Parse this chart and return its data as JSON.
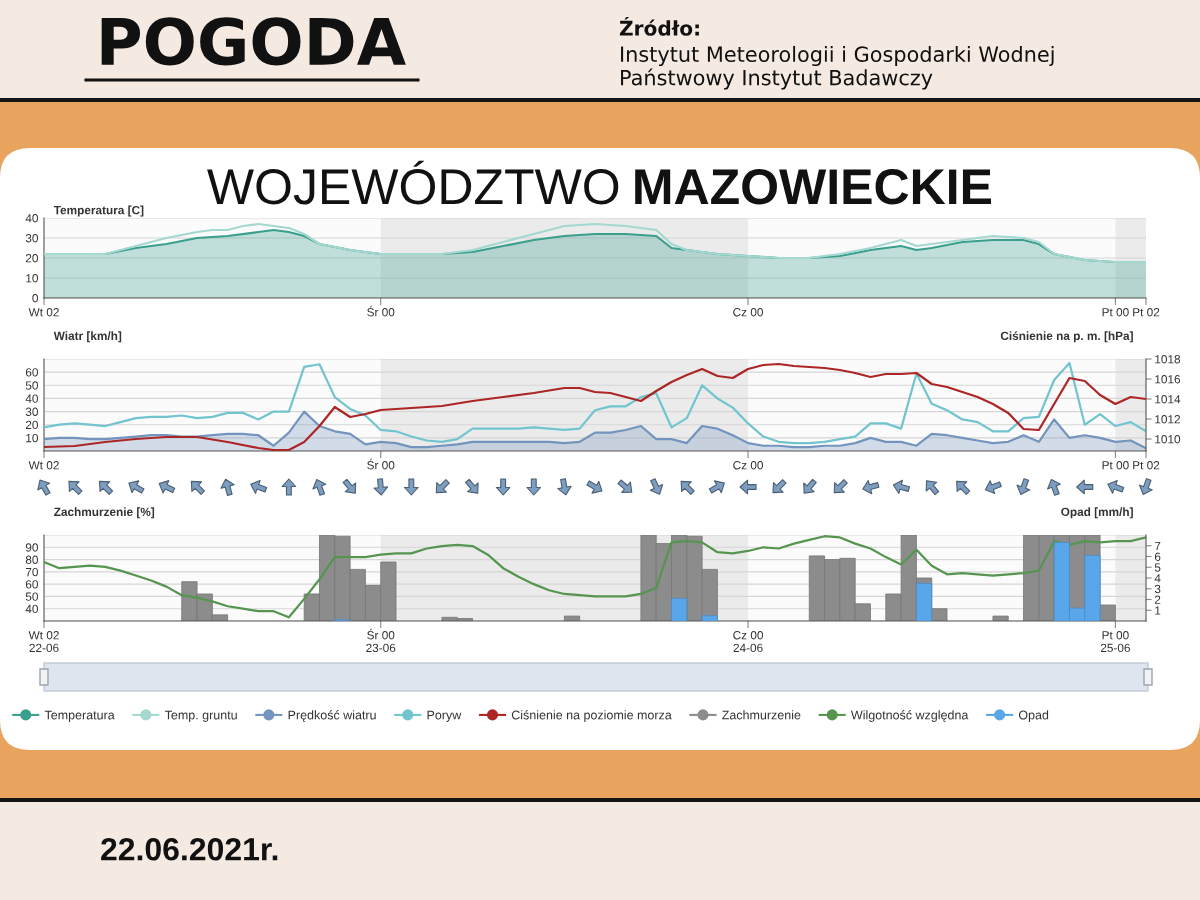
{
  "chart_data": [
    {
      "type": "line",
      "title": "WOJEWÓDZTWO MAZOWIECKIE",
      "annotations": [
        "POGODA",
        "Źródło:",
        "Instytut Meteorologii i Gospodarki Wodnej",
        "Państwowy Instytut Badawczy",
        "22.06.2021r."
      ],
      "ylabel": "Temperatura [C]",
      "xlim": [
        "2021-06-22T02:00",
        "2021-06-25T02:00"
      ],
      "xticks": [
        {
          "value": "2021-06-22T02:00",
          "label": "Wt 02"
        },
        {
          "value": "2021-06-23T00:00",
          "label": "Śr 00"
        },
        {
          "value": "2021-06-24T00:00",
          "label": "Cz 00"
        },
        {
          "value": "2021-06-25T00:00",
          "label": "Pt 00"
        },
        {
          "value": "2021-06-25T02:00",
          "label": "Pt 02"
        }
      ],
      "ylim": [
        0,
        40
      ],
      "yticks": [
        0,
        10,
        20,
        30,
        40
      ],
      "grid": "y",
      "legend": "bottom",
      "bands": [
        {
          "axis": "x",
          "from": "2021-06-23T00:00",
          "to": "2021-06-24T00:00",
          "color": "#ebebeb"
        },
        {
          "axis": "x",
          "from": "2021-06-25T00:00",
          "to": "2021-06-25T02:00",
          "color": "#ebebeb"
        }
      ],
      "series": [
        {
          "name": "Temperatura",
          "type": "area",
          "color": "#3a9f8d",
          "x": [
            "2021-06-22T02:00",
            "2021-06-22T04:00",
            "2021-06-22T06:00",
            "2021-06-22T08:00",
            "2021-06-22T10:00",
            "2021-06-22T12:00",
            "2021-06-22T14:00",
            "2021-06-22T16:00",
            "2021-06-22T17:00",
            "2021-06-22T18:00",
            "2021-06-22T19:00",
            "2021-06-22T20:00",
            "2021-06-22T22:00",
            "2021-06-23T00:00",
            "2021-06-23T02:00",
            "2021-06-23T04:00",
            "2021-06-23T06:00",
            "2021-06-23T08:00",
            "2021-06-23T10:00",
            "2021-06-23T12:00",
            "2021-06-23T14:00",
            "2021-06-23T16:00",
            "2021-06-23T18:00",
            "2021-06-23T19:00",
            "2021-06-23T20:00",
            "2021-06-23T22:00",
            "2021-06-24T00:00",
            "2021-06-24T02:00",
            "2021-06-24T04:00",
            "2021-06-24T06:00",
            "2021-06-24T08:00",
            "2021-06-24T10:00",
            "2021-06-24T11:00",
            "2021-06-24T12:00",
            "2021-06-24T14:00",
            "2021-06-24T16:00",
            "2021-06-24T18:00",
            "2021-06-24T19:00",
            "2021-06-24T20:00",
            "2021-06-24T22:00",
            "2021-06-25T00:00",
            "2021-06-25T02:00"
          ],
          "values": [
            22,
            22,
            22,
            25,
            27,
            30,
            31,
            33,
            34,
            33,
            31,
            27,
            24,
            22,
            22,
            22,
            23,
            26,
            29,
            31,
            32,
            32,
            31,
            25,
            24,
            22,
            21,
            20,
            20,
            21,
            24,
            26,
            24,
            25,
            28,
            29,
            29,
            27,
            22,
            19,
            18,
            18
          ]
        },
        {
          "name": "Temp. gruntu",
          "color": "#a4d8d0",
          "x": [
            "2021-06-22T02:00",
            "2021-06-22T04:00",
            "2021-06-22T06:00",
            "2021-06-22T08:00",
            "2021-06-22T10:00",
            "2021-06-22T12:00",
            "2021-06-22T13:00",
            "2021-06-22T14:00",
            "2021-06-22T15:00",
            "2021-06-22T16:00",
            "2021-06-22T17:00",
            "2021-06-22T18:00",
            "2021-06-22T19:00",
            "2021-06-22T20:00",
            "2021-06-22T22:00",
            "2021-06-23T00:00",
            "2021-06-23T02:00",
            "2021-06-23T04:00",
            "2021-06-23T06:00",
            "2021-06-23T08:00",
            "2021-06-23T10:00",
            "2021-06-23T12:00",
            "2021-06-23T14:00",
            "2021-06-23T16:00",
            "2021-06-23T18:00",
            "2021-06-23T19:00",
            "2021-06-23T20:00",
            "2021-06-23T22:00",
            "2021-06-24T00:00",
            "2021-06-24T02:00",
            "2021-06-24T04:00",
            "2021-06-24T06:00",
            "2021-06-24T08:00",
            "2021-06-24T10:00",
            "2021-06-24T11:00",
            "2021-06-24T12:00",
            "2021-06-24T14:00",
            "2021-06-24T16:00",
            "2021-06-24T18:00",
            "2021-06-24T19:00",
            "2021-06-24T20:00",
            "2021-06-24T22:00",
            "2021-06-25T00:00",
            "2021-06-25T02:00"
          ],
          "values": [
            22,
            22,
            22,
            26,
            30,
            33,
            34,
            34,
            36,
            37,
            36,
            35,
            32,
            27,
            24,
            22,
            22,
            22,
            24,
            28,
            32,
            36,
            37,
            36,
            34,
            27,
            24,
            22,
            21,
            20,
            20,
            22,
            25,
            29,
            26,
            27,
            29,
            31,
            30,
            28,
            22,
            19,
            18,
            18
          ]
        }
      ]
    },
    {
      "type": "line",
      "ylabel": "Wiatr [km/h]",
      "y2label": "Ciśnienie na p. m. [hPa]",
      "xlim": [
        "2021-06-22T02:00",
        "2021-06-25T02:00"
      ],
      "xticks": [
        {
          "value": "2021-06-22T02:00",
          "label": "Wt 02"
        },
        {
          "value": "2021-06-23T00:00",
          "label": "Śr 00"
        },
        {
          "value": "2021-06-24T00:00",
          "label": "Cz 00"
        },
        {
          "value": "2021-06-25T00:00",
          "label": "Pt 00"
        },
        {
          "value": "2021-06-25T02:00",
          "label": "Pt 02"
        }
      ],
      "ylim": [
        0,
        70
      ],
      "yticks": [
        10,
        20,
        30,
        40,
        50,
        60,
        {
          "value": 70,
          "label": null
        }
      ],
      "y2lim": [
        1008.8,
        1018
      ],
      "y2ticks": [
        1010,
        1012,
        1014,
        1016,
        1018
      ],
      "grid": "y",
      "legend": "bottom",
      "bands": [
        {
          "axis": "x",
          "from": "2021-06-23T00:00",
          "to": "2021-06-24T00:00",
          "color": "#ebebeb"
        },
        {
          "axis": "x",
          "from": "2021-06-25T00:00",
          "to": "2021-06-25T02:00",
          "color": "#ebebeb"
        }
      ],
      "x": [
        "2021-06-22T02:00",
        "2021-06-22T03:00",
        "2021-06-22T04:00",
        "2021-06-22T05:00",
        "2021-06-22T06:00",
        "2021-06-22T07:00",
        "2021-06-22T08:00",
        "2021-06-22T09:00",
        "2021-06-22T10:00",
        "2021-06-22T11:00",
        "2021-06-22T12:00",
        "2021-06-22T13:00",
        "2021-06-22T14:00",
        "2021-06-22T15:00",
        "2021-06-22T16:00",
        "2021-06-22T17:00",
        "2021-06-22T18:00",
        "2021-06-22T19:00",
        "2021-06-22T20:00",
        "2021-06-22T21:00",
        "2021-06-22T22:00",
        "2021-06-22T23:00",
        "2021-06-23T00:00",
        "2021-06-23T01:00",
        "2021-06-23T02:00",
        "2021-06-23T03:00",
        "2021-06-23T04:00",
        "2021-06-23T05:00",
        "2021-06-23T06:00",
        "2021-06-23T07:00",
        "2021-06-23T08:00",
        "2021-06-23T09:00",
        "2021-06-23T10:00",
        "2021-06-23T11:00",
        "2021-06-23T12:00",
        "2021-06-23T13:00",
        "2021-06-23T14:00",
        "2021-06-23T15:00",
        "2021-06-23T16:00",
        "2021-06-23T17:00",
        "2021-06-23T18:00",
        "2021-06-23T19:00",
        "2021-06-23T20:00",
        "2021-06-23T21:00",
        "2021-06-23T22:00",
        "2021-06-23T23:00",
        "2021-06-24T00:00",
        "2021-06-24T01:00",
        "2021-06-24T02:00",
        "2021-06-24T03:00",
        "2021-06-24T04:00",
        "2021-06-24T05:00",
        "2021-06-24T06:00",
        "2021-06-24T07:00",
        "2021-06-24T08:00",
        "2021-06-24T09:00",
        "2021-06-24T10:00",
        "2021-06-24T11:00",
        "2021-06-24T12:00",
        "2021-06-24T13:00",
        "2021-06-24T14:00",
        "2021-06-24T15:00",
        "2021-06-24T16:00",
        "2021-06-24T17:00",
        "2021-06-24T18:00",
        "2021-06-24T19:00",
        "2021-06-24T20:00",
        "2021-06-24T21:00",
        "2021-06-24T22:00",
        "2021-06-24T23:00",
        "2021-06-25T00:00",
        "2021-06-25T01:00",
        "2021-06-25T02:00"
      ],
      "series": [
        {
          "name": "Prędkość wiatru",
          "type": "area",
          "color": "#7394bd",
          "values": [
            9,
            10,
            10,
            9,
            9,
            10,
            11,
            12,
            12,
            11,
            11,
            12,
            13,
            13,
            12,
            4,
            14,
            30,
            19,
            15,
            13,
            5,
            7,
            6,
            3,
            3,
            4,
            5,
            7,
            7,
            7,
            7,
            7,
            7,
            6,
            7,
            14,
            14,
            16,
            19,
            9,
            9,
            6,
            19,
            17,
            12,
            6,
            4,
            4,
            3,
            3,
            4,
            4,
            6,
            10,
            7,
            7,
            4,
            13,
            12,
            10,
            8,
            6,
            7,
            12,
            7,
            24,
            10,
            12,
            10,
            7,
            8,
            2
          ]
        },
        {
          "name": "Poryw",
          "color": "#72c4ce",
          "values": [
            18,
            20,
            21,
            20,
            19,
            22,
            25,
            26,
            26,
            27,
            25,
            26,
            29,
            29,
            24,
            30,
            30,
            64,
            66,
            41,
            32,
            27,
            16,
            15,
            11,
            8,
            7,
            9,
            17,
            17,
            17,
            17,
            18,
            17,
            16,
            17,
            31,
            34,
            34,
            41,
            44,
            18,
            25,
            50,
            40,
            33,
            21,
            11,
            7,
            6,
            6,
            7,
            9,
            11,
            21,
            21,
            17,
            59,
            36,
            31,
            24,
            22,
            15,
            15,
            25,
            26,
            54,
            67,
            20,
            28,
            19,
            22,
            15
          ]
        },
        {
          "name": "Ciśnienie na poziomie morza",
          "axis": "y2",
          "color": "#ad2626",
          "x": [
            "2021-06-22T02:00",
            "2021-06-22T04:00",
            "2021-06-22T06:00",
            "2021-06-22T08:00",
            "2021-06-22T10:00",
            "2021-06-22T12:00",
            "2021-06-22T14:00",
            "2021-06-22T16:00",
            "2021-06-22T17:00",
            "2021-06-22T18:00",
            "2021-06-22T19:00",
            "2021-06-22T20:00",
            "2021-06-22T21:00",
            "2021-06-22T22:00",
            "2021-06-22T23:00",
            "2021-06-23T00:00",
            "2021-06-23T02:00",
            "2021-06-23T04:00",
            "2021-06-23T06:00",
            "2021-06-23T08:00",
            "2021-06-23T10:00",
            "2021-06-23T12:00",
            "2021-06-23T13:00",
            "2021-06-23T14:00",
            "2021-06-23T15:00",
            "2021-06-23T16:00",
            "2021-06-23T17:00",
            "2021-06-23T18:00",
            "2021-06-23T19:00",
            "2021-06-23T20:00",
            "2021-06-23T21:00",
            "2021-06-23T22:00",
            "2021-06-23T23:00",
            "2021-06-24T00:00",
            "2021-06-24T01:00",
            "2021-06-24T02:00",
            "2021-06-24T03:00",
            "2021-06-24T04:00",
            "2021-06-24T05:00",
            "2021-06-24T06:00",
            "2021-06-24T07:00",
            "2021-06-24T08:00",
            "2021-06-24T09:00",
            "2021-06-24T10:00",
            "2021-06-24T11:00",
            "2021-06-24T12:00",
            "2021-06-24T13:00",
            "2021-06-24T14:00",
            "2021-06-24T15:00",
            "2021-06-24T16:00",
            "2021-06-24T17:00",
            "2021-06-24T18:00",
            "2021-06-24T19:00",
            "2021-06-24T20:00",
            "2021-06-24T21:00",
            "2021-06-24T22:00",
            "2021-06-24T23:00",
            "2021-06-25T00:00",
            "2021-06-25T01:00",
            "2021-06-25T02:00"
          ],
          "values": [
            1009.2,
            1009.3,
            1009.7,
            1010.0,
            1010.2,
            1010.2,
            1009.7,
            1009.1,
            1008.9,
            1008.9,
            1009.7,
            1011.3,
            1013.2,
            1012.2,
            1012.5,
            1012.9,
            1013.1,
            1013.3,
            1013.8,
            1014.2,
            1014.6,
            1015.1,
            1015.1,
            1014.7,
            1014.6,
            1014.2,
            1013.8,
            1014.8,
            1015.7,
            1016.4,
            1017.0,
            1016.3,
            1016.1,
            1017.0,
            1017.4,
            1017.5,
            1017.3,
            1017.2,
            1017.1,
            1016.9,
            1016.6,
            1016.2,
            1016.5,
            1016.5,
            1016.6,
            1015.5,
            1015.2,
            1014.7,
            1014.2,
            1013.5,
            1012.6,
            1011.0,
            1010.9,
            1013.5,
            1016.1,
            1015.8,
            1014.4,
            1013.5,
            1014.2,
            1014.0
          ]
        }
      ]
    },
    {
      "type": "bar",
      "ylabel": "Zachmurzenie [%]",
      "y2label": "Opad [mm/h]",
      "xlim": [
        "2021-06-22T02:00",
        "2021-06-25T02:00"
      ],
      "xticks": [
        {
          "value": "2021-06-22T02:00",
          "label": "Wt 02\n22-06"
        },
        {
          "value": "2021-06-23T00:00",
          "label": "Śr 00\n23-06"
        },
        {
          "value": "2021-06-24T00:00",
          "label": "Cz 00\n24-06"
        },
        {
          "value": "2021-06-25T00:00",
          "label": "Pt 00\n25-06"
        }
      ],
      "ylim": [
        30,
        100
      ],
      "yticks": [
        {
          "value": 30,
          "label": null
        },
        40,
        50,
        60,
        70,
        80,
        90,
        {
          "value": 100,
          "label": null
        }
      ],
      "y2lim": [
        0,
        8
      ],
      "y2ticks": [
        1,
        2,
        3,
        4,
        5,
        6,
        7
      ],
      "grid": "y",
      "legend": "bottom",
      "bands": [
        {
          "axis": "x",
          "from": "2021-06-23T00:00",
          "to": "2021-06-24T00:00",
          "color": "#ebebeb"
        },
        {
          "axis": "x",
          "from": "2021-06-25T00:00",
          "to": "2021-06-25T02:00",
          "color": "#ebebeb"
        }
      ],
      "series": [
        {
          "name": "Zachmurzenie",
          "color": "#8c8c8c",
          "x": [
            "2021-06-22T11:30",
            "2021-06-22T12:30",
            "2021-06-22T13:30",
            "2021-06-22T19:30",
            "2021-06-22T20:30",
            "2021-06-22T21:30",
            "2021-06-22T22:30",
            "2021-06-22T23:30",
            "2021-06-23T00:30",
            "2021-06-23T04:30",
            "2021-06-23T05:30",
            "2021-06-23T12:30",
            "2021-06-23T17:30",
            "2021-06-23T18:30",
            "2021-06-23T19:30",
            "2021-06-23T20:30",
            "2021-06-23T21:30",
            "2021-06-24T04:30",
            "2021-06-24T05:30",
            "2021-06-24T06:30",
            "2021-06-24T07:30",
            "2021-06-24T09:30",
            "2021-06-24T10:30",
            "2021-06-24T11:30",
            "2021-06-24T12:30",
            "2021-06-24T16:30",
            "2021-06-24T18:30",
            "2021-06-24T19:30",
            "2021-06-24T20:30",
            "2021-06-24T21:30",
            "2021-06-24T22:30",
            "2021-06-24T23:30"
          ],
          "values": [
            62,
            52,
            35,
            52,
            100,
            99,
            72,
            59,
            78,
            33,
            32,
            34,
            100,
            93,
            100,
            99,
            72,
            83,
            80,
            81,
            44,
            52,
            100,
            65,
            40,
            34,
            100,
            100,
            100,
            100,
            100,
            43
          ]
        },
        {
          "name": "Wilgotność względna",
          "type": "line",
          "color": "#55954f",
          "x": [
            "2021-06-22T02:00",
            "2021-06-22T03:00",
            "2021-06-22T04:00",
            "2021-06-22T05:00",
            "2021-06-22T06:00",
            "2021-06-22T07:00",
            "2021-06-22T08:00",
            "2021-06-22T09:00",
            "2021-06-22T10:00",
            "2021-06-22T11:00",
            "2021-06-22T12:00",
            "2021-06-22T13:00",
            "2021-06-22T14:00",
            "2021-06-22T15:00",
            "2021-06-22T16:00",
            "2021-06-22T17:00",
            "2021-06-22T18:00",
            "2021-06-22T19:00",
            "2021-06-22T20:00",
            "2021-06-22T21:00",
            "2021-06-22T22:00",
            "2021-06-22T23:00",
            "2021-06-23T00:00",
            "2021-06-23T01:00",
            "2021-06-23T02:00",
            "2021-06-23T03:00",
            "2021-06-23T04:00",
            "2021-06-23T05:00",
            "2021-06-23T06:00",
            "2021-06-23T07:00",
            "2021-06-23T08:00",
            "2021-06-23T09:00",
            "2021-06-23T10:00",
            "2021-06-23T11:00",
            "2021-06-23T12:00",
            "2021-06-23T13:00",
            "2021-06-23T14:00",
            "2021-06-23T15:00",
            "2021-06-23T16:00",
            "2021-06-23T17:00",
            "2021-06-23T18:00",
            "2021-06-23T19:00",
            "2021-06-23T20:00",
            "2021-06-23T21:00",
            "2021-06-23T22:00",
            "2021-06-23T23:00",
            "2021-06-24T00:00",
            "2021-06-24T01:00",
            "2021-06-24T02:00",
            "2021-06-24T03:00",
            "2021-06-24T04:00",
            "2021-06-24T05:00",
            "2021-06-24T06:00",
            "2021-06-24T07:00",
            "2021-06-24T08:00",
            "2021-06-24T09:00",
            "2021-06-24T10:00",
            "2021-06-24T11:00",
            "2021-06-24T12:00",
            "2021-06-24T13:00",
            "2021-06-24T14:00",
            "2021-06-24T15:00",
            "2021-06-24T16:00",
            "2021-06-24T17:00",
            "2021-06-24T18:00",
            "2021-06-24T19:00",
            "2021-06-24T20:00",
            "2021-06-24T21:00",
            "2021-06-24T22:00",
            "2021-06-24T23:00",
            "2021-06-25T00:00",
            "2021-06-25T01:00",
            "2021-06-25T02:00"
          ],
          "values": [
            78,
            73,
            74,
            75,
            74,
            71,
            67,
            63,
            58,
            51,
            49,
            46,
            42,
            40,
            38,
            38,
            33,
            48,
            64,
            82,
            82,
            82,
            84,
            85,
            85,
            89,
            91,
            92,
            91,
            84,
            73,
            66,
            60,
            55,
            52,
            51,
            50,
            50,
            50,
            52,
            57,
            94,
            95,
            94,
            86,
            85,
            87,
            90,
            89,
            93,
            96,
            99,
            98,
            93,
            89,
            82,
            76,
            88,
            75,
            68,
            69,
            68,
            67,
            68,
            69,
            71,
            95,
            92,
            95,
            94,
            95,
            95,
            98
          ]
        },
        {
          "name": "Opad",
          "axis": "y2",
          "color": "#5aa6ea",
          "x": [
            "2021-06-22T21:30",
            "2021-06-23T19:30",
            "2021-06-23T21:30",
            "2021-06-24T11:30",
            "2021-06-24T20:30",
            "2021-06-24T21:30",
            "2021-06-24T22:30"
          ],
          "values": [
            0.1,
            2.1,
            0.5,
            3.5,
            7.3,
            1.2,
            6.1
          ]
        }
      ]
    }
  ]
}
